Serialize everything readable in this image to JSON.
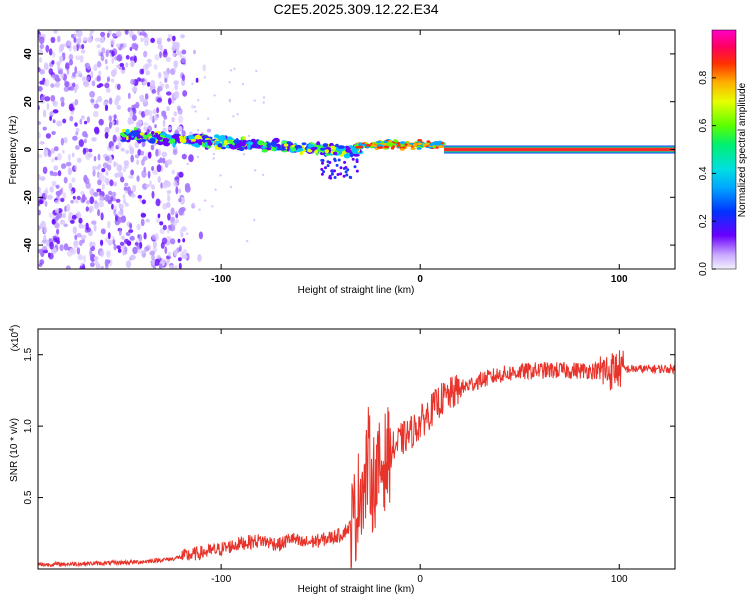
{
  "title": "C2E5.2025.309.12.22.E34",
  "chart_data": [
    {
      "type": "heatmap",
      "name": "spectrogram",
      "xlabel": "Height of straight line (km)",
      "ylabel": "Frequency (Hz)",
      "xlim": [
        -192,
        128
      ],
      "ylim": [
        -50,
        50
      ],
      "x_ticks": [
        "-100",
        "0",
        "100"
      ],
      "y_ticks": [
        "40",
        "20",
        "0",
        "-20",
        "-40"
      ],
      "colorbar": {
        "label": "Normalized spectral amplitude",
        "range": [
          0,
          1
        ],
        "ticks": [
          "0.0",
          "0.2",
          "0.4",
          "0.6",
          "0.8"
        ]
      },
      "bands": [
        {
          "x_start": -192,
          "x_end": -118,
          "freq_range": [
            -50,
            50
          ],
          "amplitude": "low",
          "description": "scattered noise"
        },
        {
          "x_start": -150,
          "x_end": -30,
          "freq_center_start": 6,
          "freq_center_end": -1,
          "amplitude": "medium"
        },
        {
          "x_start": -32,
          "x_end": 12,
          "freq_center": 2,
          "amplitude": "high"
        },
        {
          "x_start": 12,
          "x_end": 128,
          "freq_center": 0,
          "amplitude": "max"
        }
      ]
    },
    {
      "type": "line",
      "name": "snr",
      "xlabel": "Height of straight line (km)",
      "ylabel": "SNR (10 * v/v)",
      "y_multiplier": "(x10",
      "y_multiplier_exp": "4",
      "xlim": [
        -192,
        128
      ],
      "ylim": [
        0,
        1.68
      ],
      "x_ticks": [
        "-100",
        "0",
        "100"
      ],
      "y_ticks": [
        "0.5",
        "1.0",
        "1.5"
      ],
      "series": [
        {
          "name": "SNR",
          "color": "#e8332a",
          "x": [
            -192,
            -160,
            -140,
            -125,
            -115,
            -100,
            -90,
            -80,
            -70,
            -65,
            -60,
            -50,
            -40,
            -35,
            -32,
            -30,
            -28,
            -26,
            -24,
            -22,
            -20,
            -15,
            -10,
            -5,
            0,
            5,
            10,
            20,
            30,
            40,
            50,
            60,
            70,
            80,
            90,
            95,
            98,
            100,
            110,
            120,
            128
          ],
          "values": [
            0.03,
            0.04,
            0.05,
            0.07,
            0.1,
            0.14,
            0.18,
            0.2,
            0.17,
            0.22,
            0.18,
            0.2,
            0.24,
            0.3,
            0.4,
            0.6,
            0.55,
            0.8,
            0.6,
            0.65,
            0.7,
            0.82,
            0.9,
            0.95,
            1.02,
            1.1,
            1.18,
            1.26,
            1.32,
            1.36,
            1.38,
            1.39,
            1.39,
            1.39,
            1.39,
            1.38,
            1.4,
            1.4,
            1.4,
            1.4,
            1.4
          ]
        }
      ]
    }
  ]
}
